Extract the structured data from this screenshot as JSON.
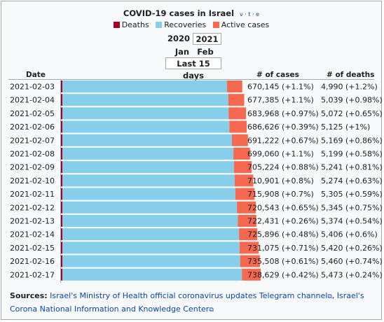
{
  "header": {
    "title": "COVID-19 cases in Israel",
    "vte": "v · t · e"
  },
  "legend": [
    {
      "label": "Deaths",
      "color": "#a50026"
    },
    {
      "label": "Recoveries",
      "color": "#87ceeb"
    },
    {
      "label": "Active cases",
      "color": "#f4694f"
    }
  ],
  "selectors": {
    "year_2020": "2020",
    "year_2021": "2021",
    "month_jan": "Jan",
    "month_feb": "Feb",
    "range": "Last 15 days"
  },
  "columns": {
    "date": "Date",
    "cases": "# of cases",
    "deaths": "# of deaths"
  },
  "chart_data": {
    "type": "bar",
    "orientation": "horizontal-stacked",
    "stack_order": [
      "Deaths",
      "Recoveries",
      "Active cases"
    ],
    "categories": [
      "2021-02-03",
      "2021-02-04",
      "2021-02-05",
      "2021-02-06",
      "2021-02-07",
      "2021-02-08",
      "2021-02-09",
      "2021-02-10",
      "2021-02-11",
      "2021-02-12",
      "2021-02-13",
      "2021-02-14",
      "2021-02-15",
      "2021-02-16",
      "2021-02-17"
    ],
    "total_cases": [
      670145,
      677385,
      683968,
      686626,
      691222,
      699060,
      705224,
      710901,
      715908,
      720543,
      722431,
      725896,
      731075,
      735508,
      738629
    ],
    "deaths": [
      4990,
      5039,
      5072,
      5125,
      5169,
      5199,
      5241,
      5274,
      5305,
      5345,
      5374,
      5406,
      5420,
      5460,
      5473
    ],
    "recoveries": [
      609000,
      613500,
      614500,
      617500,
      627000,
      632500,
      634500,
      637000,
      639500,
      645500,
      648500,
      653000,
      655000,
      657000,
      663500
    ],
    "cases_label": [
      "670,145 (+1.1%)",
      "677,385 (+1.1%)",
      "683,968 (+0.97%)",
      "686,626 (+0.39%)",
      "691,222 (+0.67%)",
      "699,060 (+1.1%)",
      "705,224 (+0.88%)",
      "710,901 (+0.8%)",
      "715,908 (+0.7%)",
      "720,543 (+0.65%)",
      "722,431 (+0.26%)",
      "725,896 (+0.48%)",
      "731,075 (+0.71%)",
      "735,508 (+0.61%)",
      "738,629 (+0.42%)"
    ],
    "deaths_label": [
      "4,990 (+1.2%)",
      "5,039 (+0.98%)",
      "5,072 (+0.65%)",
      "5,125 (+1%)",
      "5,169 (+0.86%)",
      "5,199 (+0.58%)",
      "5,241 (+0.81%)",
      "5,274 (+0.63%)",
      "5,305 (+0.59%)",
      "5,345 (+0.75%)",
      "5,374 (+0.54%)",
      "5,406 (+0.6%)",
      "5,420 (+0.26%)",
      "5,460 (+0.74%)",
      "5,473 (+0.24%)"
    ],
    "xlim": [
      0,
      855000
    ]
  },
  "sources": {
    "label": "Sources:",
    "link1": "Israel's Ministry of Health official coronavirus updates Telegram channel",
    "separator": ", ",
    "link2": "Israel's Corona National Information and Knowledge Center",
    "ext_icon": "external-link-icon"
  }
}
